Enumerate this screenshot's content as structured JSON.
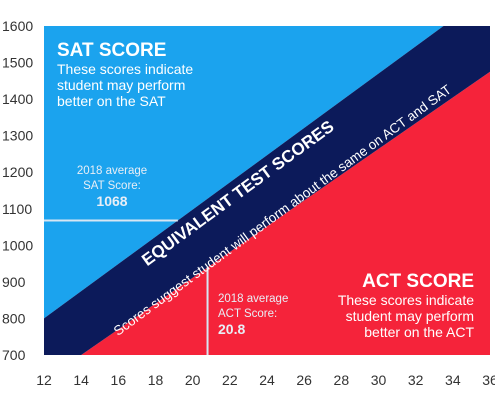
{
  "chart_data": {
    "type": "area",
    "xlim": [
      12,
      36
    ],
    "ylim": [
      700,
      1600
    ],
    "x_ticks": [
      12,
      14,
      16,
      18,
      20,
      22,
      24,
      26,
      28,
      30,
      32,
      34,
      36
    ],
    "y_ticks": [
      700,
      800,
      900,
      1000,
      1100,
      1200,
      1300,
      1400,
      1500,
      1600
    ],
    "grid": false,
    "colors": {
      "sat_region": "#1ba3ee",
      "act_region": "#f5233a",
      "equivalent_band": "#0c1a5a",
      "reference_line": "#d7e6f3"
    },
    "equivalent_band": {
      "upper_edge": [
        {
          "x": 12,
          "y": 800
        },
        {
          "x": 33.5,
          "y": 1600
        }
      ],
      "lower_edge": [
        {
          "x": 14,
          "y": 700
        },
        {
          "x": 36,
          "y": 1475
        }
      ]
    },
    "sat_box": {
      "title": "SAT SCORE",
      "lines": [
        "These scores indicate",
        "student may perform",
        "better on the SAT"
      ]
    },
    "act_box": {
      "title": "ACT SCORE",
      "lines": [
        "These scores indicate",
        "student may perform",
        "better on the ACT"
      ]
    },
    "band_label": {
      "title": "EQUIVALENT TEST SCORES",
      "subtitle": "Scores suggest student will perform about the same on ACT and SAT"
    },
    "sat_average": {
      "label_lines": [
        "2018 average",
        "SAT Score:"
      ],
      "value": 1068
    },
    "act_average": {
      "label_lines": [
        "2018 average",
        "ACT Score:"
      ],
      "value": 20.8
    }
  }
}
